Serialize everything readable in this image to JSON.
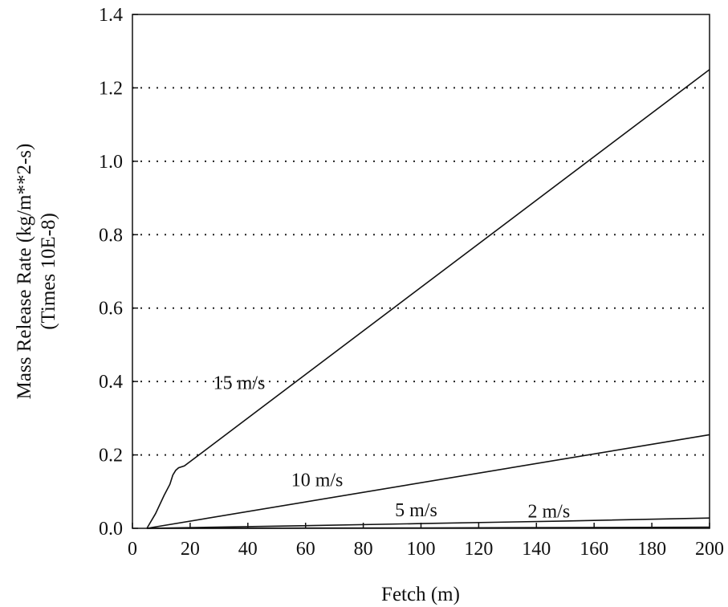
{
  "chart_data": {
    "type": "line",
    "xlabel": "Fetch (m)",
    "ylabel": "Mass Release Rate (kg/m**2-s)",
    "ylabel2": "(Times 10E-8)",
    "xlim": [
      0,
      200
    ],
    "ylim": [
      0,
      1.4
    ],
    "x_ticks": [
      "0",
      "20",
      "40",
      "60",
      "80",
      "100",
      "120",
      "140",
      "160",
      "180",
      "200"
    ],
    "y_ticks": [
      "0.0",
      "0.2",
      "0.4",
      "0.6",
      "0.8",
      "1.0",
      "1.2",
      "1.4"
    ],
    "grid": "horizontal dotted",
    "series": [
      {
        "name": "15 m/s",
        "x": [
          5,
          8,
          11,
          13,
          14,
          15,
          16,
          18,
          200
        ],
        "y": [
          0.0,
          0.04,
          0.09,
          0.12,
          0.145,
          0.158,
          0.165,
          0.17,
          1.25
        ]
      },
      {
        "name": "10 m/s",
        "x": [
          5,
          200
        ],
        "y": [
          0.0,
          0.255
        ]
      },
      {
        "name": "5 m/s",
        "x": [
          5,
          50,
          100,
          150,
          200
        ],
        "y": [
          0.0,
          0.006,
          0.013,
          0.02,
          0.028
        ]
      },
      {
        "name": "2 m/s",
        "x": [
          5,
          100,
          200
        ],
        "y": [
          0.0,
          0.001,
          0.003
        ]
      }
    ],
    "annotations": [
      {
        "text": "15 m/s",
        "x": 28,
        "y": 0.38
      },
      {
        "text": "10 m/s",
        "x": 55,
        "y": 0.115
      },
      {
        "text": "5 m/s",
        "x": 91,
        "y": 0.033
      },
      {
        "text": "2 m/s",
        "x": 137,
        "y": 0.03
      }
    ]
  }
}
